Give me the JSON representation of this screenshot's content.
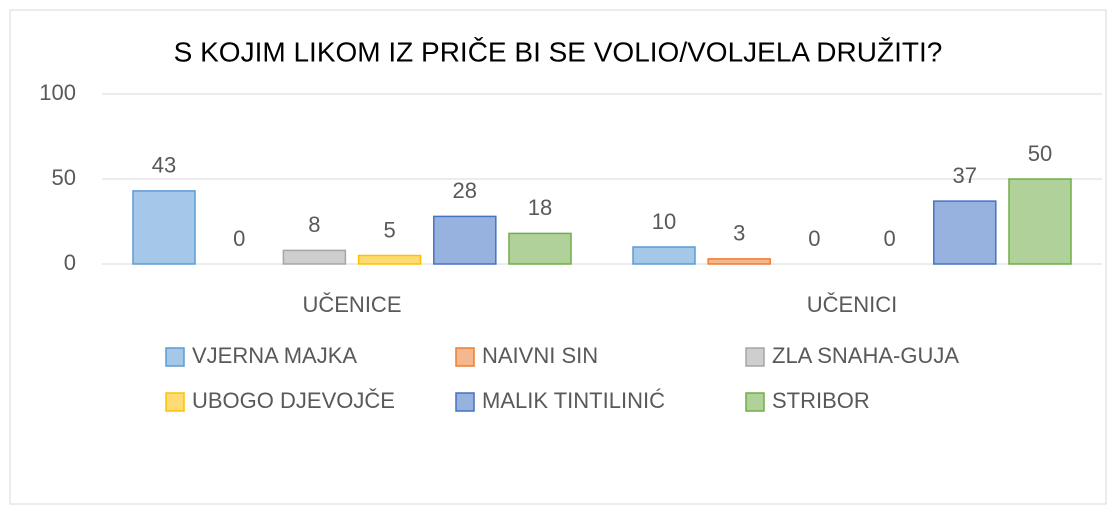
{
  "chart_data": {
    "type": "bar",
    "title": "S KOJIM LIKOM IZ PRIČE BI SE VOLIO/VOLJELA DRUŽITI?",
    "categories": [
      "UČENICE",
      "UČENICI"
    ],
    "series": [
      {
        "name": "VJERNA MAJKA",
        "color": "#5b9bd5",
        "values": [
          43,
          10
        ]
      },
      {
        "name": "NAIVNI SIN",
        "color": "#ed7d31",
        "values": [
          0,
          3
        ]
      },
      {
        "name": "ZLA SNAHA-GUJA",
        "color": "#a5a5a5",
        "values": [
          8,
          0
        ]
      },
      {
        "name": "UBOGO DJEVOJČE",
        "color": "#ffc000",
        "values": [
          5,
          0
        ]
      },
      {
        "name": "MALIK TINTILINIĆ",
        "color": "#4472c4",
        "values": [
          28,
          37
        ]
      },
      {
        "name": "STRIBOR",
        "color": "#70ad47",
        "values": [
          18,
          50
        ]
      }
    ],
    "ylim": [
      0,
      100
    ],
    "yticks": [
      0,
      50,
      100
    ],
    "grid": true,
    "legend": "bottom"
  }
}
